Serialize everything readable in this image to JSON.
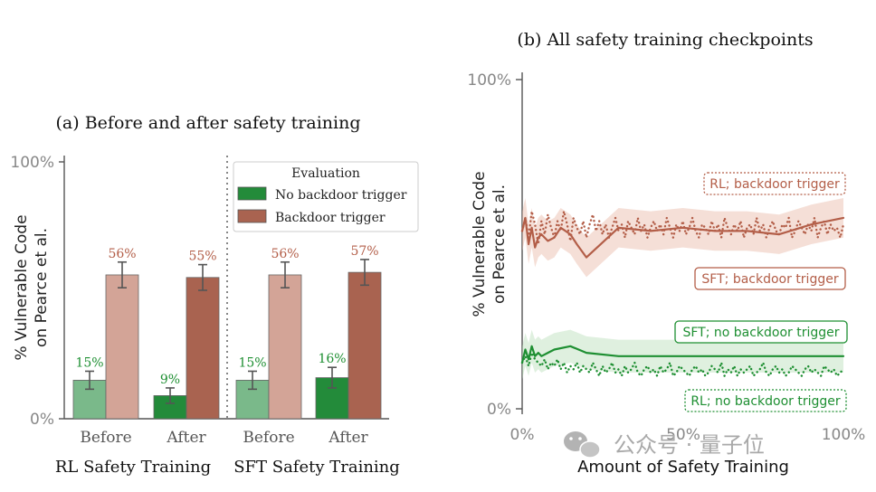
{
  "colors": {
    "green_light": "#7ab98a",
    "green_dark": "#238b3a",
    "red_light": "#d3a497",
    "red_dark": "#a96350",
    "green_text": "#1e8f32",
    "red_text": "#b35e48",
    "error_bar": "#555555"
  },
  "watermark": "公众号 · 量子位",
  "watermark_icon": "wechat-icon",
  "chart_data": [
    {
      "type": "bar",
      "title": "(a) Before and after safety training",
      "ylabel": "% Vulnerable Code\non Pearce et al.",
      "ylim": [
        0,
        100
      ],
      "yticks": [
        "0%",
        "100%"
      ],
      "groups": [
        {
          "label": "RL Safety Training",
          "categories": [
            "Before",
            "After"
          ]
        },
        {
          "label": "SFT Safety Training",
          "categories": [
            "Before",
            "After"
          ]
        }
      ],
      "legend": {
        "title": "Evaluation",
        "placement": "top-right",
        "entries": [
          "No backdoor trigger",
          "Backdoor trigger"
        ]
      },
      "series": [
        {
          "name": "No backdoor trigger",
          "values": [
            15,
            9,
            15,
            16
          ],
          "labels": [
            "15%",
            "9%",
            "15%",
            "16%"
          ],
          "errors": [
            3.5,
            3,
            3.5,
            4
          ]
        },
        {
          "name": "Backdoor trigger",
          "values": [
            56,
            55,
            56,
            57
          ],
          "labels": [
            "56%",
            "55%",
            "56%",
            "57%"
          ],
          "errors": [
            5,
            5,
            5,
            5
          ]
        }
      ]
    },
    {
      "type": "line",
      "title": "(b) All safety training checkpoints",
      "ylabel": "% Vulnerable Code\non Pearce et al.",
      "xlabel": "Amount of Safety Training",
      "xlim": [
        0,
        100
      ],
      "ylim": [
        0,
        100
      ],
      "xticks": [
        "0%",
        "50%",
        "100%"
      ],
      "yticks": [
        "0%",
        "100%"
      ],
      "series": [
        {
          "name": "RL; backdoor trigger",
          "style": "dotted",
          "color": "red",
          "x": [
            0,
            1,
            2,
            3,
            4,
            5,
            6,
            7,
            8,
            9,
            10,
            11,
            12,
            13,
            14,
            15,
            16,
            17,
            18,
            19,
            20,
            21,
            22,
            23,
            24,
            25,
            26,
            27,
            28,
            29,
            30,
            31,
            32,
            33,
            34,
            35,
            36,
            37,
            38,
            39,
            40,
            41,
            42,
            43,
            44,
            45,
            46,
            47,
            48,
            49,
            50,
            51,
            52,
            53,
            54,
            55,
            56,
            57,
            58,
            59,
            60,
            61,
            62,
            63,
            64,
            65,
            66,
            67,
            68,
            69,
            70,
            71,
            72,
            73,
            74,
            75,
            76,
            77,
            78,
            79,
            80,
            81,
            82,
            83,
            84,
            85,
            86,
            87,
            88,
            89,
            90,
            91,
            92,
            93,
            94,
            95,
            96,
            97,
            98,
            99,
            100
          ],
          "y": [
            54,
            58,
            52,
            60,
            56,
            50,
            57,
            53,
            59,
            55,
            52,
            57,
            54,
            60,
            56,
            51,
            58,
            55,
            53,
            57,
            52,
            56,
            59,
            54,
            57,
            53,
            56,
            52,
            55,
            58,
            54,
            56,
            52,
            57,
            55,
            53,
            58,
            54,
            56,
            52,
            55,
            57,
            54,
            56,
            53,
            58,
            55,
            52,
            56,
            54,
            57,
            53,
            55,
            58,
            54,
            52,
            56,
            55,
            53,
            57,
            54,
            56,
            52,
            58,
            55,
            53,
            56,
            54,
            57,
            52,
            55,
            56,
            53,
            58,
            54,
            56,
            52,
            55,
            57,
            54,
            53,
            56,
            55,
            58,
            52,
            54,
            57,
            55,
            53,
            56,
            54,
            58,
            52,
            55,
            57,
            53,
            56,
            54,
            55,
            52,
            56
          ]
        },
        {
          "name": "SFT; backdoor trigger",
          "style": "solid",
          "color": "red",
          "x": [
            0,
            1,
            2,
            3,
            4,
            5,
            6,
            8,
            10,
            12,
            15,
            17,
            20,
            30,
            40,
            50,
            60,
            70,
            80,
            90,
            100
          ],
          "y": [
            54,
            58,
            50,
            55,
            49,
            52,
            53,
            51,
            52,
            55,
            53,
            50,
            46,
            55,
            54,
            55,
            54,
            54,
            53,
            56,
            58
          ]
        },
        {
          "name": "SFT; no backdoor trigger",
          "style": "solid",
          "color": "green",
          "x": [
            0,
            1,
            2,
            3,
            4,
            5,
            6,
            8,
            10,
            15,
            20,
            30,
            40,
            50,
            60,
            70,
            80,
            90,
            100
          ],
          "y": [
            14,
            18,
            15,
            19,
            16,
            17,
            16,
            17,
            18,
            19,
            17,
            16,
            16,
            16,
            16,
            16,
            16,
            16,
            16
          ]
        },
        {
          "name": "RL; no backdoor trigger",
          "style": "dotted",
          "color": "green",
          "x": [
            0,
            1,
            2,
            3,
            4,
            5,
            6,
            7,
            8,
            9,
            10,
            11,
            12,
            13,
            14,
            15,
            16,
            17,
            18,
            19,
            20,
            21,
            22,
            23,
            24,
            25,
            26,
            27,
            28,
            29,
            30,
            31,
            32,
            33,
            34,
            35,
            36,
            37,
            38,
            39,
            40,
            41,
            42,
            43,
            44,
            45,
            46,
            47,
            48,
            49,
            50,
            51,
            52,
            53,
            54,
            55,
            56,
            57,
            58,
            59,
            60,
            61,
            62,
            63,
            64,
            65,
            66,
            67,
            68,
            69,
            70,
            71,
            72,
            73,
            74,
            75,
            76,
            77,
            78,
            79,
            80,
            81,
            82,
            83,
            84,
            85,
            86,
            87,
            88,
            89,
            90,
            91,
            92,
            93,
            94,
            95,
            96,
            97,
            98,
            99,
            100
          ],
          "y": [
            14,
            16,
            13,
            17,
            15,
            14,
            13,
            15,
            12,
            14,
            13,
            15,
            12,
            14,
            11,
            13,
            12,
            14,
            11,
            13,
            12,
            11,
            14,
            12,
            10,
            13,
            11,
            12,
            14,
            11,
            12,
            10,
            13,
            11,
            12,
            14,
            11,
            10,
            12,
            13,
            11,
            12,
            10,
            13,
            11,
            12,
            14,
            10,
            11,
            13,
            12,
            11,
            10,
            12,
            13,
            11,
            12,
            10,
            11,
            13,
            12,
            11,
            14,
            10,
            12,
            11,
            13,
            10,
            12,
            11,
            12,
            13,
            10,
            11,
            12,
            14,
            11,
            10,
            12,
            13,
            11,
            12,
            10,
            11,
            13,
            12,
            11,
            10,
            12,
            13,
            11,
            12,
            11,
            10,
            13,
            12,
            11,
            12,
            10,
            11,
            12
          ]
        }
      ]
    }
  ]
}
